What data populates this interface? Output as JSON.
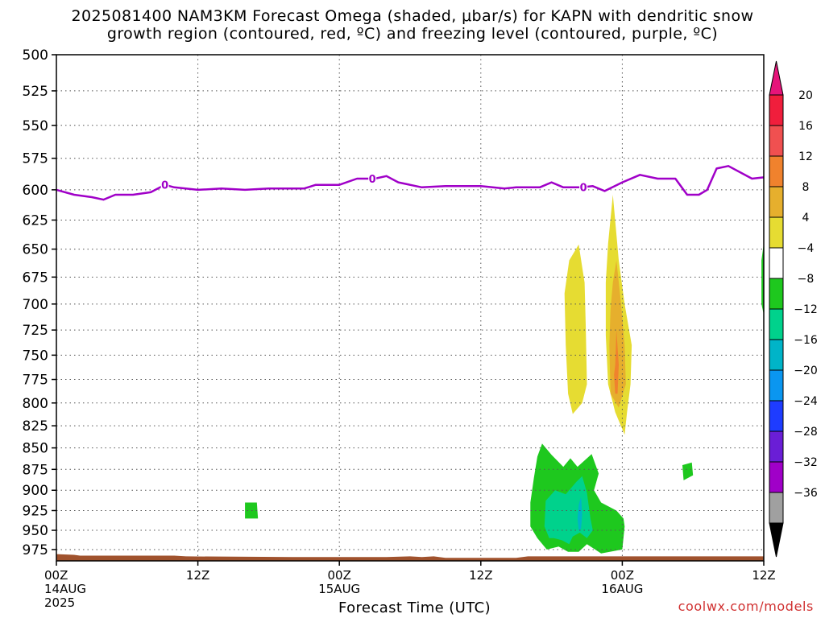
{
  "title": {
    "line1": "2025081400 NAM3KM Forecast Omega (shaded, μbar/s) for KAPN with dendritic snow",
    "line2": "growth region (contoured, red, ºC) and freezing level (contoured, purple, ºC)"
  },
  "credit": "coolwx.com/models",
  "chart_data": {
    "type": "contour",
    "title": "2025081400 NAM3KM Forecast Omega (shaded, μbar/s) for KAPN with dendritic snow growth region (contoured, red, ºC) and freezing level (contoured, purple, ºC)",
    "xlabel": "Forecast Time (UTC)",
    "ylabel": "",
    "x_range_hours": [
      0,
      60
    ],
    "y_range_hPa": [
      500,
      990
    ],
    "x_ticks": [
      {
        "hour": 0,
        "lines": [
          "00Z",
          "14AUG",
          "2025"
        ]
      },
      {
        "hour": 12,
        "lines": [
          "12Z"
        ]
      },
      {
        "hour": 24,
        "lines": [
          "00Z",
          "15AUG"
        ]
      },
      {
        "hour": 36,
        "lines": [
          "12Z"
        ]
      },
      {
        "hour": 48,
        "lines": [
          "00Z",
          "16AUG"
        ]
      },
      {
        "hour": 60,
        "lines": [
          "12Z"
        ]
      }
    ],
    "y_ticks": [
      500,
      525,
      550,
      575,
      600,
      625,
      650,
      675,
      700,
      725,
      750,
      775,
      800,
      825,
      850,
      875,
      900,
      925,
      950,
      975
    ],
    "grid": true,
    "colorbar": {
      "labels": [
        "20",
        "16",
        "12",
        "8",
        "4",
        "−4",
        "−8",
        "−12",
        "−16",
        "−20",
        "−24",
        "−28",
        "−32",
        "−36"
      ],
      "colors": [
        "#f01e3c",
        "#f05050",
        "#f0822d",
        "#e6af2d",
        "#e6dc32",
        "#ffffff",
        "#1ec81e",
        "#00d28c",
        "#00b4c8",
        "#0a96f0",
        "#1e3cff",
        "#6a1ed6",
        "#a000c8",
        "#a0a0a0"
      ],
      "top_arrow_color": "#e6147a",
      "bottom_arrow_color": "#000000"
    },
    "freezing_level": {
      "label": "0",
      "color": "#a000c8",
      "points": [
        [
          0,
          600
        ],
        [
          1.5,
          604
        ],
        [
          3,
          606
        ],
        [
          4,
          608
        ],
        [
          5,
          604
        ],
        [
          6.5,
          604
        ],
        [
          8,
          602
        ],
        [
          9.2,
          596
        ],
        [
          10,
          598
        ],
        [
          12,
          600
        ],
        [
          14,
          599
        ],
        [
          16,
          600
        ],
        [
          18,
          599
        ],
        [
          21,
          599
        ],
        [
          22,
          596
        ],
        [
          24,
          596
        ],
        [
          25.5,
          591
        ],
        [
          27,
          591
        ],
        [
          28,
          589
        ],
        [
          29,
          594
        ],
        [
          31,
          598
        ],
        [
          33,
          597
        ],
        [
          36,
          597
        ],
        [
          38,
          599
        ],
        [
          39,
          598
        ],
        [
          41,
          598
        ],
        [
          42,
          594
        ],
        [
          43,
          598
        ],
        [
          44.5,
          598
        ],
        [
          45.5,
          597
        ],
        [
          46.5,
          601
        ],
        [
          48,
          594
        ],
        [
          49.5,
          588
        ],
        [
          51,
          591
        ],
        [
          52.5,
          591
        ],
        [
          53.5,
          604
        ],
        [
          54.5,
          604
        ],
        [
          55.2,
          600
        ],
        [
          56,
          583
        ],
        [
          57,
          581
        ],
        [
          59,
          591
        ],
        [
          60,
          590
        ]
      ]
    },
    "omega_regions": [
      {
        "value_range": "4 to 8",
        "color": "#e6dc32",
        "points": [
          [
            43.5,
            660
          ],
          [
            44.3,
            646
          ],
          [
            44.8,
            680
          ],
          [
            44.9,
            720
          ],
          [
            45.0,
            780
          ],
          [
            44.6,
            800
          ],
          [
            43.8,
            812
          ],
          [
            43.4,
            790
          ],
          [
            43.2,
            740
          ],
          [
            43.1,
            690
          ]
        ]
      },
      {
        "value_range": "4 to 8",
        "color": "#e6dc32",
        "points": [
          [
            46.8,
            645
          ],
          [
            47.2,
            604
          ],
          [
            47.7,
            660
          ],
          [
            48.2,
            700
          ],
          [
            48.8,
            740
          ],
          [
            48.7,
            780
          ],
          [
            48.4,
            810
          ],
          [
            48.2,
            835
          ],
          [
            47.4,
            810
          ],
          [
            46.8,
            780
          ],
          [
            46.6,
            730
          ],
          [
            46.6,
            680
          ]
        ]
      },
      {
        "value_range": "8 to 12",
        "color": "#e6af2d",
        "points": [
          [
            47.2,
            680
          ],
          [
            47.5,
            660
          ],
          [
            47.9,
            700
          ],
          [
            48.2,
            740
          ],
          [
            48.3,
            780
          ],
          [
            47.7,
            805
          ],
          [
            47.0,
            790
          ],
          [
            46.9,
            740
          ],
          [
            47.0,
            705
          ]
        ]
      },
      {
        "value_range": "12 to 16",
        "color": "#f0822d",
        "points": [
          [
            47.4,
            760
          ],
          [
            47.5,
            725
          ],
          [
            47.7,
            760
          ],
          [
            47.6,
            790
          ],
          [
            47.4,
            790
          ],
          [
            47.3,
            770
          ]
        ]
      },
      {
        "value_range": "-4 to -8",
        "color": "#1ec81e",
        "points": [
          [
            40.8,
            860
          ],
          [
            41.2,
            845
          ],
          [
            42.0,
            858
          ],
          [
            43.0,
            872
          ],
          [
            43.6,
            862
          ],
          [
            44.2,
            872
          ],
          [
            45.4,
            857
          ],
          [
            46.0,
            880
          ],
          [
            45.6,
            900
          ],
          [
            46.2,
            915
          ],
          [
            47.5,
            925
          ],
          [
            48.1,
            935
          ],
          [
            48.2,
            945
          ],
          [
            48.0,
            975
          ],
          [
            46.2,
            980
          ],
          [
            45.0,
            968
          ],
          [
            44.3,
            978
          ],
          [
            43.4,
            978
          ],
          [
            42.6,
            971
          ],
          [
            41.6,
            975
          ],
          [
            40.8,
            960
          ],
          [
            40.2,
            945
          ],
          [
            40.2,
            915
          ],
          [
            40.5,
            885
          ]
        ]
      },
      {
        "value_range": "-8 to -12",
        "color": "#00d28c",
        "points": [
          [
            41.5,
            913
          ],
          [
            42.3,
            900
          ],
          [
            43.2,
            905
          ],
          [
            44.1,
            890
          ],
          [
            44.6,
            883
          ],
          [
            45.0,
            903
          ],
          [
            45.3,
            935
          ],
          [
            45.5,
            950
          ],
          [
            45.0,
            960
          ],
          [
            44.4,
            953
          ],
          [
            43.8,
            958
          ],
          [
            43.5,
            968
          ],
          [
            42.9,
            963
          ],
          [
            42.2,
            960
          ],
          [
            41.8,
            960
          ],
          [
            41.4,
            945
          ]
        ]
      },
      {
        "value_range": "-12 to -16",
        "color": "#00b4c8",
        "points": [
          [
            44.3,
            918
          ],
          [
            44.5,
            908
          ],
          [
            44.6,
            930
          ],
          [
            44.5,
            948
          ],
          [
            44.3,
            950
          ],
          [
            44.2,
            935
          ]
        ]
      },
      {
        "value_range": "-4 to -8",
        "color": "#1ec81e",
        "points": [
          [
            16.0,
            915
          ],
          [
            17.0,
            915
          ],
          [
            17.1,
            935
          ],
          [
            16.0,
            935
          ]
        ]
      },
      {
        "value_range": "-4 to -8",
        "color": "#1ec81e",
        "points": [
          [
            53.1,
            870
          ],
          [
            53.9,
            867
          ],
          [
            54.0,
            882
          ],
          [
            53.2,
            888
          ]
        ]
      },
      {
        "value_range": "-4 to -8",
        "color": "#1ec81e",
        "points": [
          [
            59.8,
            660
          ],
          [
            60,
            645
          ],
          [
            60,
            710
          ],
          [
            59.8,
            700
          ]
        ]
      }
    ],
    "ground": {
      "color": "#a0522d",
      "points": [
        [
          0,
          981
        ],
        [
          1.5,
          982
        ],
        [
          2,
          983
        ],
        [
          10,
          983
        ],
        [
          11,
          984
        ],
        [
          20,
          985
        ],
        [
          28,
          985
        ],
        [
          30,
          984
        ],
        [
          31,
          985
        ],
        [
          32,
          984
        ],
        [
          33,
          986
        ],
        [
          39,
          986
        ],
        [
          40,
          984
        ],
        [
          60,
          984
        ]
      ]
    }
  }
}
